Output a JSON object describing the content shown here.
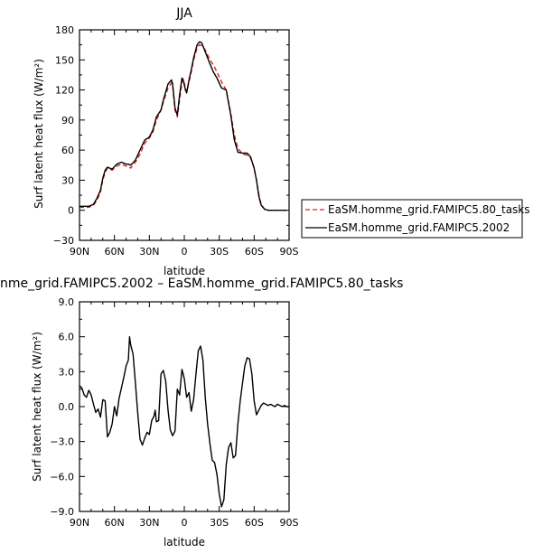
{
  "chart_data": [
    {
      "type": "line",
      "title": "JJA",
      "xlabel": "latitude",
      "ylabel": "Surf latent heat flux (W/m²)",
      "xlim": [
        90,
        -90
      ],
      "ylim": [
        -30,
        180
      ],
      "x_ticks": [
        90,
        60,
        30,
        0,
        -30,
        -60,
        -90
      ],
      "x_tick_labels": [
        "90N",
        "60N",
        "30N",
        "0",
        "30S",
        "60S",
        "90S"
      ],
      "y_ticks": [
        -30,
        0,
        30,
        60,
        90,
        120,
        150,
        180
      ],
      "y_tick_labels": [
        "−30",
        "0",
        "30",
        "60",
        "90",
        "120",
        "150",
        "180"
      ],
      "legend_position": "right",
      "series": [
        {
          "name": "EaSM.homme_grid.FAMIPC5.80_tasks",
          "color": "#e0201b",
          "dash": "dashed",
          "points": [
            [
              90,
              3
            ],
            [
              86,
              3
            ],
            [
              82,
              3
            ],
            [
              78,
              5
            ],
            [
              75,
              10
            ],
            [
              72,
              18
            ],
            [
              70,
              30
            ],
            [
              68,
              38
            ],
            [
              66,
              42
            ],
            [
              62,
              40
            ],
            [
              58,
              44
            ],
            [
              54,
              46
            ],
            [
              50,
              44
            ],
            [
              48,
              44
            ],
            [
              46,
              42
            ],
            [
              42,
              48
            ],
            [
              38,
              56
            ],
            [
              34,
              67
            ],
            [
              30,
              72
            ],
            [
              27,
              78
            ],
            [
              24,
              90
            ],
            [
              20,
              100
            ],
            [
              18,
              108
            ],
            [
              14,
              122
            ],
            [
              11,
              127
            ],
            [
              10,
              124
            ],
            [
              8,
              100
            ],
            [
              6,
              93
            ],
            [
              4,
              110
            ],
            [
              2,
              128
            ],
            [
              1,
              131
            ],
            [
              -1,
              122
            ],
            [
              -2,
              118
            ],
            [
              -4,
              128
            ],
            [
              -6,
              138
            ],
            [
              -8,
              150
            ],
            [
              -11,
              162
            ],
            [
              -13,
              165
            ],
            [
              -15,
              164
            ],
            [
              -18,
              160
            ],
            [
              -22,
              150
            ],
            [
              -25,
              145
            ],
            [
              -28,
              138
            ],
            [
              -32,
              128
            ],
            [
              -36,
              120
            ],
            [
              -40,
              96
            ],
            [
              -43,
              75
            ],
            [
              -46,
              62
            ],
            [
              -50,
              56
            ],
            [
              -54,
              55
            ],
            [
              -57,
              52
            ],
            [
              -60,
              42
            ],
            [
              -62,
              30
            ],
            [
              -64,
              16
            ],
            [
              -66,
              6
            ],
            [
              -69,
              1
            ],
            [
              -72,
              0
            ],
            [
              -76,
              0
            ],
            [
              -80,
              0
            ],
            [
              -84,
              0
            ],
            [
              -88,
              0
            ]
          ]
        },
        {
          "name": "EaSM.homme_grid.FAMIPC5.2002",
          "color": "#000000",
          "dash": "solid",
          "points": [
            [
              90,
              4
            ],
            [
              86,
              4
            ],
            [
              82,
              4
            ],
            [
              78,
              6
            ],
            [
              75,
              12
            ],
            [
              72,
              20
            ],
            [
              70,
              32
            ],
            [
              68,
              40
            ],
            [
              66,
              43
            ],
            [
              62,
              41
            ],
            [
              58,
              46
            ],
            [
              54,
              48
            ],
            [
              50,
              46
            ],
            [
              48,
              46
            ],
            [
              46,
              45
            ],
            [
              42,
              50
            ],
            [
              38,
              60
            ],
            [
              34,
              70
            ],
            [
              30,
              73
            ],
            [
              27,
              80
            ],
            [
              24,
              93
            ],
            [
              20,
              100
            ],
            [
              18,
              110
            ],
            [
              14,
              126
            ],
            [
              11,
              130
            ],
            [
              10,
              126
            ],
            [
              8,
              102
            ],
            [
              6,
              95
            ],
            [
              4,
              115
            ],
            [
              2,
              132
            ],
            [
              1,
              130
            ],
            [
              -1,
              120
            ],
            [
              -2,
              117
            ],
            [
              -4,
              130
            ],
            [
              -6,
              140
            ],
            [
              -8,
              152
            ],
            [
              -11,
              165
            ],
            [
              -13,
              168
            ],
            [
              -15,
              167
            ],
            [
              -18,
              158
            ],
            [
              -22,
              146
            ],
            [
              -25,
              138
            ],
            [
              -28,
              132
            ],
            [
              -32,
              122
            ],
            [
              -36,
              120
            ],
            [
              -40,
              94
            ],
            [
              -43,
              70
            ],
            [
              -46,
              58
            ],
            [
              -50,
              57
            ],
            [
              -54,
              57
            ],
            [
              -57,
              53
            ],
            [
              -60,
              42
            ],
            [
              -62,
              30
            ],
            [
              -64,
              14
            ],
            [
              -66,
              5
            ],
            [
              -69,
              1
            ],
            [
              -72,
              0
            ],
            [
              -76,
              0
            ],
            [
              -80,
              0
            ],
            [
              -84,
              0
            ],
            [
              -88,
              0
            ]
          ]
        }
      ]
    },
    {
      "type": "line",
      "title": "nme_grid.FAMIPC5.2002 – EaSM.homme_grid.FAMIPC5.80_tasks",
      "xlabel": "latitude",
      "ylabel": "Surf latent heat flux (W/m²)",
      "xlim": [
        90,
        -90
      ],
      "ylim": [
        -9,
        9
      ],
      "x_ticks": [
        90,
        60,
        30,
        0,
        -30,
        -60,
        -90
      ],
      "x_tick_labels": [
        "90N",
        "60N",
        "30N",
        "0",
        "30S",
        "60S",
        "90S"
      ],
      "y_ticks": [
        -9,
        -6,
        -3,
        0,
        3,
        6,
        9
      ],
      "y_tick_labels": [
        "−9.0",
        "−6.0",
        "−3.0",
        "0.0",
        "3.0",
        "6.0",
        "9.0"
      ],
      "series": [
        {
          "name": "",
          "color": "#000000",
          "dash": "solid",
          "points": [
            [
              90,
              1.8
            ],
            [
              88,
              1.6
            ],
            [
              86,
              1.0
            ],
            [
              84,
              0.8
            ],
            [
              82,
              1.4
            ],
            [
              80,
              1.0
            ],
            [
              78,
              0.2
            ],
            [
              76,
              -0.5
            ],
            [
              74,
              -0.2
            ],
            [
              72,
              -0.9
            ],
            [
              70,
              0.6
            ],
            [
              68,
              0.5
            ],
            [
              66,
              -2.6
            ],
            [
              64,
              -2.2
            ],
            [
              62,
              -1.5
            ],
            [
              60,
              0.0
            ],
            [
              58,
              -0.8
            ],
            [
              56,
              0.7
            ],
            [
              54,
              1.6
            ],
            [
              52,
              2.5
            ],
            [
              50,
              3.5
            ],
            [
              48,
              4.0
            ],
            [
              47,
              6.0
            ],
            [
              46,
              5.3
            ],
            [
              44,
              4.5
            ],
            [
              42,
              2.0
            ],
            [
              40,
              -0.5
            ],
            [
              38,
              -2.8
            ],
            [
              36,
              -3.3
            ],
            [
              34,
              -2.7
            ],
            [
              32,
              -2.2
            ],
            [
              30,
              -2.4
            ],
            [
              28,
              -1.2
            ],
            [
              26,
              -0.8
            ],
            [
              25,
              -0.3
            ],
            [
              24,
              -1.3
            ],
            [
              22,
              -1.2
            ],
            [
              20,
              2.8
            ],
            [
              18,
              3.1
            ],
            [
              16,
              2.2
            ],
            [
              14,
              -0.3
            ],
            [
              12,
              -2.0
            ],
            [
              10,
              -2.5
            ],
            [
              8,
              -2.1
            ],
            [
              6,
              1.5
            ],
            [
              4,
              1.0
            ],
            [
              2,
              3.2
            ],
            [
              0,
              2.4
            ],
            [
              -2,
              0.8
            ],
            [
              -4,
              1.2
            ],
            [
              -6,
              -0.4
            ],
            [
              -8,
              0.6
            ],
            [
              -10,
              2.8
            ],
            [
              -12,
              4.8
            ],
            [
              -14,
              5.2
            ],
            [
              -16,
              4.0
            ],
            [
              -18,
              0.8
            ],
            [
              -20,
              -1.5
            ],
            [
              -22,
              -3.2
            ],
            [
              -24,
              -4.6
            ],
            [
              -26,
              -4.8
            ],
            [
              -28,
              -5.8
            ],
            [
              -30,
              -7.5
            ],
            [
              -32,
              -8.6
            ],
            [
              -34,
              -8.0
            ],
            [
              -36,
              -5.0
            ],
            [
              -38,
              -3.5
            ],
            [
              -40,
              -3.1
            ],
            [
              -42,
              -4.4
            ],
            [
              -44,
              -4.2
            ],
            [
              -46,
              -1.5
            ],
            [
              -48,
              0.5
            ],
            [
              -50,
              2.0
            ],
            [
              -52,
              3.5
            ],
            [
              -54,
              4.2
            ],
            [
              -56,
              4.1
            ],
            [
              -58,
              2.8
            ],
            [
              -60,
              0.5
            ],
            [
              -62,
              -0.7
            ],
            [
              -64,
              -0.3
            ],
            [
              -66,
              0.1
            ],
            [
              -68,
              0.3
            ],
            [
              -70,
              0.2
            ],
            [
              -72,
              0.1
            ],
            [
              -74,
              0.2
            ],
            [
              -76,
              0.1
            ],
            [
              -78,
              0.0
            ],
            [
              -80,
              0.2
            ],
            [
              -82,
              0.1
            ],
            [
              -84,
              0.0
            ],
            [
              -86,
              0.1
            ],
            [
              -88,
              0.0
            ],
            [
              -90,
              0.0
            ]
          ]
        }
      ]
    }
  ]
}
